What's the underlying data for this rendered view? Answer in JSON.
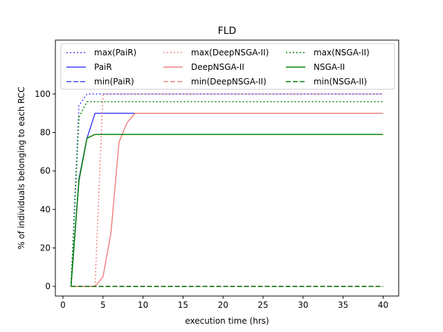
{
  "chart_data": {
    "type": "line",
    "title": "FLD",
    "xlabel": "execution time (hrs)",
    "ylabel": "% of individuals belonging to each RCC",
    "xlim": [
      -0.95,
      41.95
    ],
    "ylim": [
      -5.0,
      128.0
    ],
    "x_ticks": [
      0,
      5,
      10,
      15,
      20,
      25,
      30,
      35,
      40
    ],
    "y_ticks": [
      0,
      20,
      40,
      60,
      80,
      100
    ],
    "grid": false,
    "legend": {
      "placement": "top",
      "columns": 3
    },
    "series": [
      {
        "name": "max(PaiR)",
        "color": "#4040ff",
        "style": "dotted",
        "x": [
          1,
          2,
          3,
          4,
          5,
          10,
          20,
          30,
          40
        ],
        "y": [
          0,
          94,
          100,
          100,
          100,
          100,
          100,
          100,
          100
        ]
      },
      {
        "name": "PaiR",
        "color": "#4040ff",
        "style": "solid",
        "x": [
          1,
          2,
          3,
          4,
          5,
          10,
          20,
          30,
          40
        ],
        "y": [
          0,
          56,
          77,
          90,
          90,
          90,
          90,
          90,
          90
        ]
      },
      {
        "name": "min(PaiR)",
        "color": "#4040ff",
        "style": "dashed",
        "x": [
          1,
          2,
          3,
          4,
          5,
          10,
          20,
          30,
          40
        ],
        "y": [
          0,
          0,
          0,
          0,
          0,
          0,
          0,
          0,
          0
        ]
      },
      {
        "name": "max(DeepNSGA-II)",
        "color": "#f08080",
        "style": "dotted",
        "x": [
          1,
          2,
          3,
          4,
          5,
          6,
          10,
          20,
          30,
          40
        ],
        "y": [
          0,
          0,
          0,
          0,
          100,
          100,
          100,
          100,
          100,
          100
        ]
      },
      {
        "name": "DeepNSGA-II",
        "color": "#f08080",
        "style": "solid",
        "x": [
          1,
          2,
          3,
          4,
          5,
          6,
          7,
          8,
          9,
          10,
          20,
          30,
          40
        ],
        "y": [
          0,
          0,
          0,
          0,
          5,
          28,
          75,
          85,
          90,
          90,
          90,
          90,
          90
        ]
      },
      {
        "name": "min(DeepNSGA-II)",
        "color": "#f08080",
        "style": "dashed",
        "x": [
          1,
          2,
          3,
          4,
          5,
          10,
          20,
          30,
          40
        ],
        "y": [
          0,
          0,
          0,
          0,
          0,
          0,
          0,
          0,
          0
        ]
      },
      {
        "name": "max(NSGA-II)",
        "color": "#008000",
        "style": "dotted",
        "x": [
          1,
          2,
          3,
          4,
          5,
          10,
          20,
          30,
          40
        ],
        "y": [
          0,
          88,
          96,
          96,
          96,
          96,
          96,
          96,
          96
        ]
      },
      {
        "name": "NSGA-II",
        "color": "#008000",
        "style": "solid",
        "x": [
          1,
          2,
          3,
          4,
          5,
          10,
          20,
          30,
          40
        ],
        "y": [
          0,
          55,
          77,
          79,
          79,
          79,
          79,
          79,
          79
        ]
      },
      {
        "name": "min(NSGA-II)",
        "color": "#008000",
        "style": "dashed",
        "x": [
          1,
          2,
          3,
          4,
          5,
          10,
          20,
          30,
          40
        ],
        "y": [
          0,
          0,
          0,
          0,
          0,
          0,
          0,
          0,
          0
        ]
      }
    ]
  }
}
